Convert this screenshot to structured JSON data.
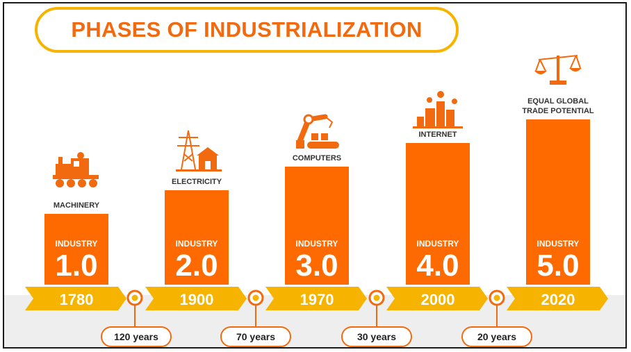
{
  "title": "PHASES OF INDUSTRIALIZATION",
  "chart_data": {
    "type": "bar",
    "title": "PHASES OF INDUSTRIALIZATION",
    "categories": [
      "1780",
      "1900",
      "1970",
      "2000",
      "2020"
    ],
    "values": [
      1.0,
      2.0,
      3.0,
      4.0,
      5.0
    ],
    "bar_labels": [
      "INDUSTRY",
      "INDUSTRY",
      "INDUSTRY",
      "INDUSTRY",
      "INDUSTRY"
    ],
    "value_labels": [
      "1.0",
      "2.0",
      "3.0",
      "4.0",
      "5.0"
    ],
    "phases": [
      [
        "MACHINERY"
      ],
      [
        "ELECTRICITY"
      ],
      [
        "COMPUTERS"
      ],
      [
        "INTERNET"
      ],
      [
        "EQUAL GLOBAL",
        "TRADE POTENTIAL"
      ]
    ],
    "intervals": [
      "120 years",
      "70 years",
      "30 years",
      "20 years"
    ],
    "icons": [
      "train-icon",
      "power-tower-house-icon",
      "robot-arm-icon",
      "smart-city-icon",
      "balance-scale-icon"
    ],
    "ylim": [
      0,
      5
    ],
    "xlabel": "",
    "ylabel": "",
    "grid": false,
    "legend": "none",
    "colors": {
      "bar": "#ff6a00",
      "timeline": "#f6b400",
      "accent": "#f26a0f",
      "floor": "#eeeeee"
    }
  }
}
